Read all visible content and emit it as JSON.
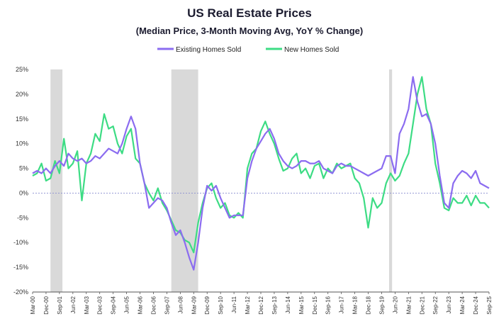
{
  "chart_data": {
    "type": "line",
    "title": "US Real Estate Prices",
    "subtitle": "(Median Price, 3-Month Moving Avg, YoY % Change)",
    "xlabel": "",
    "ylabel": "",
    "ylim": [
      -20,
      25
    ],
    "xlim": [
      "2000-03",
      "2025-09"
    ],
    "y_ticks": [
      "25%",
      "20%",
      "15%",
      "10%",
      "5%",
      "0%",
      "-5%",
      "-10%",
      "-15%",
      "-20%"
    ],
    "y_tick_values": [
      25,
      20,
      15,
      10,
      5,
      0,
      -5,
      -10,
      -15,
      -20
    ],
    "x_tick_labels": [
      "Mar-00",
      "Dec-00",
      "Sep-01",
      "Jun-02",
      "Mar-03",
      "Dec-03",
      "Sep-04",
      "Jun-05",
      "Mar-06",
      "Dec-06",
      "Sep-07",
      "Jun-08",
      "Mar-09",
      "Dec-09",
      "Sep-10",
      "Jun-11",
      "Mar-12",
      "Dec-12",
      "Sep-13",
      "Jun-14",
      "Mar-15",
      "Dec-15",
      "Sep-16",
      "Jun-17",
      "Mar-18",
      "Dec-18",
      "Sep-19",
      "Jun-20",
      "Mar-21",
      "Dec-21",
      "Sep-22",
      "Jun-23",
      "Mar-24",
      "Dec-24",
      "Sep-25"
    ],
    "x_tick_dates": [
      "2000-03",
      "2000-12",
      "2001-09",
      "2002-06",
      "2003-03",
      "2003-12",
      "2004-09",
      "2005-06",
      "2006-03",
      "2006-12",
      "2007-09",
      "2008-06",
      "2009-03",
      "2009-12",
      "2010-09",
      "2011-06",
      "2012-03",
      "2012-12",
      "2013-09",
      "2014-06",
      "2015-03",
      "2015-12",
      "2016-09",
      "2017-06",
      "2018-03",
      "2018-12",
      "2019-09",
      "2020-06",
      "2021-03",
      "2021-12",
      "2022-09",
      "2023-06",
      "2024-03",
      "2024-12",
      "2025-09"
    ],
    "recessions": [
      [
        "2001-03",
        "2001-11"
      ],
      [
        "2007-12",
        "2009-06"
      ],
      [
        "2020-02",
        "2020-04"
      ]
    ],
    "legend_position": "top-center",
    "grid": false,
    "zero_line": true,
    "series": [
      {
        "name": "Existing Homes Sold",
        "color": "#8b6cf0",
        "points": [
          [
            "2000-03",
            4.0
          ],
          [
            "2000-06",
            4.5
          ],
          [
            "2000-09",
            4.0
          ],
          [
            "2000-12",
            5.0
          ],
          [
            "2001-03",
            4.0
          ],
          [
            "2001-06",
            5.5
          ],
          [
            "2001-09",
            6.5
          ],
          [
            "2001-12",
            5.5
          ],
          [
            "2002-03",
            8.0
          ],
          [
            "2002-06",
            7.0
          ],
          [
            "2002-09",
            6.5
          ],
          [
            "2002-12",
            7.0
          ],
          [
            "2003-03",
            6.0
          ],
          [
            "2003-06",
            6.5
          ],
          [
            "2003-09",
            7.5
          ],
          [
            "2003-12",
            7.0
          ],
          [
            "2004-03",
            8.0
          ],
          [
            "2004-06",
            9.0
          ],
          [
            "2004-09",
            8.5
          ],
          [
            "2004-12",
            8.0
          ],
          [
            "2005-03",
            10.0
          ],
          [
            "2005-06",
            13.0
          ],
          [
            "2005-09",
            15.5
          ],
          [
            "2005-12",
            13.0
          ],
          [
            "2006-03",
            6.0
          ],
          [
            "2006-06",
            2.0
          ],
          [
            "2006-09",
            -3.0
          ],
          [
            "2006-12",
            -2.0
          ],
          [
            "2007-03",
            -1.0
          ],
          [
            "2007-06",
            -1.5
          ],
          [
            "2007-09",
            -3.0
          ],
          [
            "2007-12",
            -6.0
          ],
          [
            "2008-03",
            -8.5
          ],
          [
            "2008-06",
            -7.5
          ],
          [
            "2008-09",
            -10.0
          ],
          [
            "2008-12",
            -13.0
          ],
          [
            "2009-03",
            -15.5
          ],
          [
            "2009-06",
            -10.0
          ],
          [
            "2009-09",
            -3.0
          ],
          [
            "2009-12",
            1.5
          ],
          [
            "2010-03",
            0.5
          ],
          [
            "2010-06",
            1.5
          ],
          [
            "2010-09",
            -1.0
          ],
          [
            "2010-12",
            -3.0
          ],
          [
            "2011-03",
            -5.0
          ],
          [
            "2011-06",
            -4.5
          ],
          [
            "2011-09",
            -4.5
          ],
          [
            "2011-12",
            -4.5
          ],
          [
            "2012-03",
            3.0
          ],
          [
            "2012-06",
            6.5
          ],
          [
            "2012-09",
            9.0
          ],
          [
            "2012-12",
            10.5
          ],
          [
            "2013-03",
            12.0
          ],
          [
            "2013-06",
            13.0
          ],
          [
            "2013-09",
            11.0
          ],
          [
            "2013-12",
            8.0
          ],
          [
            "2014-03",
            6.5
          ],
          [
            "2014-06",
            5.5
          ],
          [
            "2014-09",
            5.0
          ],
          [
            "2014-12",
            5.5
          ],
          [
            "2015-03",
            6.5
          ],
          [
            "2015-06",
            6.5
          ],
          [
            "2015-09",
            6.0
          ],
          [
            "2015-12",
            6.0
          ],
          [
            "2016-03",
            6.5
          ],
          [
            "2016-06",
            5.0
          ],
          [
            "2016-09",
            4.5
          ],
          [
            "2016-12",
            4.0
          ],
          [
            "2017-03",
            5.5
          ],
          [
            "2017-06",
            6.0
          ],
          [
            "2017-09",
            5.5
          ],
          [
            "2017-12",
            5.5
          ],
          [
            "2018-03",
            5.0
          ],
          [
            "2018-06",
            4.5
          ],
          [
            "2018-09",
            4.0
          ],
          [
            "2018-12",
            3.5
          ],
          [
            "2019-03",
            4.0
          ],
          [
            "2019-06",
            4.5
          ],
          [
            "2019-09",
            5.0
          ],
          [
            "2019-12",
            7.5
          ],
          [
            "2020-03",
            7.5
          ],
          [
            "2020-06",
            4.0
          ],
          [
            "2020-09",
            12.0
          ],
          [
            "2020-12",
            14.0
          ],
          [
            "2021-03",
            17.0
          ],
          [
            "2021-06",
            23.5
          ],
          [
            "2021-09",
            18.5
          ],
          [
            "2021-12",
            15.5
          ],
          [
            "2022-03",
            16.0
          ],
          [
            "2022-06",
            14.0
          ],
          [
            "2022-09",
            10.0
          ],
          [
            "2022-12",
            3.5
          ],
          [
            "2023-03",
            -2.0
          ],
          [
            "2023-06",
            -3.0
          ],
          [
            "2023-09",
            2.0
          ],
          [
            "2023-12",
            3.5
          ],
          [
            "2024-03",
            4.5
          ],
          [
            "2024-06",
            4.0
          ],
          [
            "2024-09",
            3.0
          ],
          [
            "2024-12",
            4.5
          ],
          [
            "2025-03",
            2.0
          ],
          [
            "2025-06",
            1.5
          ],
          [
            "2025-09",
            1.0
          ]
        ]
      },
      {
        "name": "New Homes Sold",
        "color": "#3ddc84",
        "points": [
          [
            "2000-03",
            3.5
          ],
          [
            "2000-06",
            4.0
          ],
          [
            "2000-09",
            6.0
          ],
          [
            "2000-12",
            2.5
          ],
          [
            "2001-03",
            3.0
          ],
          [
            "2001-06",
            6.5
          ],
          [
            "2001-09",
            4.0
          ],
          [
            "2001-12",
            11.0
          ],
          [
            "2002-03",
            5.0
          ],
          [
            "2002-06",
            6.0
          ],
          [
            "2002-09",
            8.5
          ],
          [
            "2002-12",
            -1.5
          ],
          [
            "2003-03",
            6.0
          ],
          [
            "2003-06",
            8.0
          ],
          [
            "2003-09",
            12.0
          ],
          [
            "2003-12",
            10.5
          ],
          [
            "2004-03",
            16.0
          ],
          [
            "2004-06",
            13.0
          ],
          [
            "2004-09",
            13.5
          ],
          [
            "2004-12",
            10.0
          ],
          [
            "2005-03",
            8.0
          ],
          [
            "2005-06",
            11.5
          ],
          [
            "2005-09",
            13.0
          ],
          [
            "2005-12",
            7.0
          ],
          [
            "2006-03",
            6.0
          ],
          [
            "2006-06",
            2.0
          ],
          [
            "2006-09",
            0.0
          ],
          [
            "2006-12",
            -1.5
          ],
          [
            "2007-03",
            1.0
          ],
          [
            "2007-06",
            -2.0
          ],
          [
            "2007-09",
            -3.5
          ],
          [
            "2007-12",
            -5.5
          ],
          [
            "2008-03",
            -7.5
          ],
          [
            "2008-06",
            -8.0
          ],
          [
            "2008-09",
            -9.5
          ],
          [
            "2008-12",
            -10.0
          ],
          [
            "2009-03",
            -12.0
          ],
          [
            "2009-06",
            -6.0
          ],
          [
            "2009-09",
            -2.0
          ],
          [
            "2009-12",
            1.0
          ],
          [
            "2010-03",
            2.0
          ],
          [
            "2010-06",
            -1.0
          ],
          [
            "2010-09",
            -3.0
          ],
          [
            "2010-12",
            -2.0
          ],
          [
            "2011-03",
            -4.5
          ],
          [
            "2011-06",
            -5.0
          ],
          [
            "2011-09",
            -4.0
          ],
          [
            "2011-12",
            -5.0
          ],
          [
            "2012-03",
            5.0
          ],
          [
            "2012-06",
            8.0
          ],
          [
            "2012-09",
            9.0
          ],
          [
            "2012-12",
            12.5
          ],
          [
            "2013-03",
            14.5
          ],
          [
            "2013-06",
            12.0
          ],
          [
            "2013-09",
            10.0
          ],
          [
            "2013-12",
            7.0
          ],
          [
            "2014-03",
            4.5
          ],
          [
            "2014-06",
            5.0
          ],
          [
            "2014-09",
            7.0
          ],
          [
            "2014-12",
            8.0
          ],
          [
            "2015-03",
            4.0
          ],
          [
            "2015-06",
            5.0
          ],
          [
            "2015-09",
            3.0
          ],
          [
            "2015-12",
            5.5
          ],
          [
            "2016-03",
            6.0
          ],
          [
            "2016-06",
            3.0
          ],
          [
            "2016-09",
            5.0
          ],
          [
            "2016-12",
            4.0
          ],
          [
            "2017-03",
            6.0
          ],
          [
            "2017-06",
            5.0
          ],
          [
            "2017-09",
            5.5
          ],
          [
            "2017-12",
            6.0
          ],
          [
            "2018-03",
            3.0
          ],
          [
            "2018-06",
            2.0
          ],
          [
            "2018-09",
            -1.0
          ],
          [
            "2018-12",
            -7.0
          ],
          [
            "2019-03",
            -1.0
          ],
          [
            "2019-06",
            -3.0
          ],
          [
            "2019-09",
            -2.0
          ],
          [
            "2019-12",
            2.0
          ],
          [
            "2020-03",
            4.0
          ],
          [
            "2020-06",
            2.5
          ],
          [
            "2020-09",
            3.5
          ],
          [
            "2020-12",
            6.0
          ],
          [
            "2021-03",
            8.0
          ],
          [
            "2021-06",
            14.0
          ],
          [
            "2021-09",
            20.0
          ],
          [
            "2021-12",
            23.5
          ],
          [
            "2022-03",
            17.0
          ],
          [
            "2022-06",
            14.0
          ],
          [
            "2022-09",
            6.0
          ],
          [
            "2022-12",
            2.0
          ],
          [
            "2023-03",
            -3.0
          ],
          [
            "2023-06",
            -3.5
          ],
          [
            "2023-09",
            -1.0
          ],
          [
            "2023-12",
            -2.0
          ],
          [
            "2024-03",
            -2.0
          ],
          [
            "2024-06",
            -0.5
          ],
          [
            "2024-09",
            -2.5
          ],
          [
            "2024-12",
            -0.5
          ],
          [
            "2025-03",
            -2.0
          ],
          [
            "2025-06",
            -2.0
          ],
          [
            "2025-09",
            -3.0
          ]
        ]
      }
    ]
  }
}
